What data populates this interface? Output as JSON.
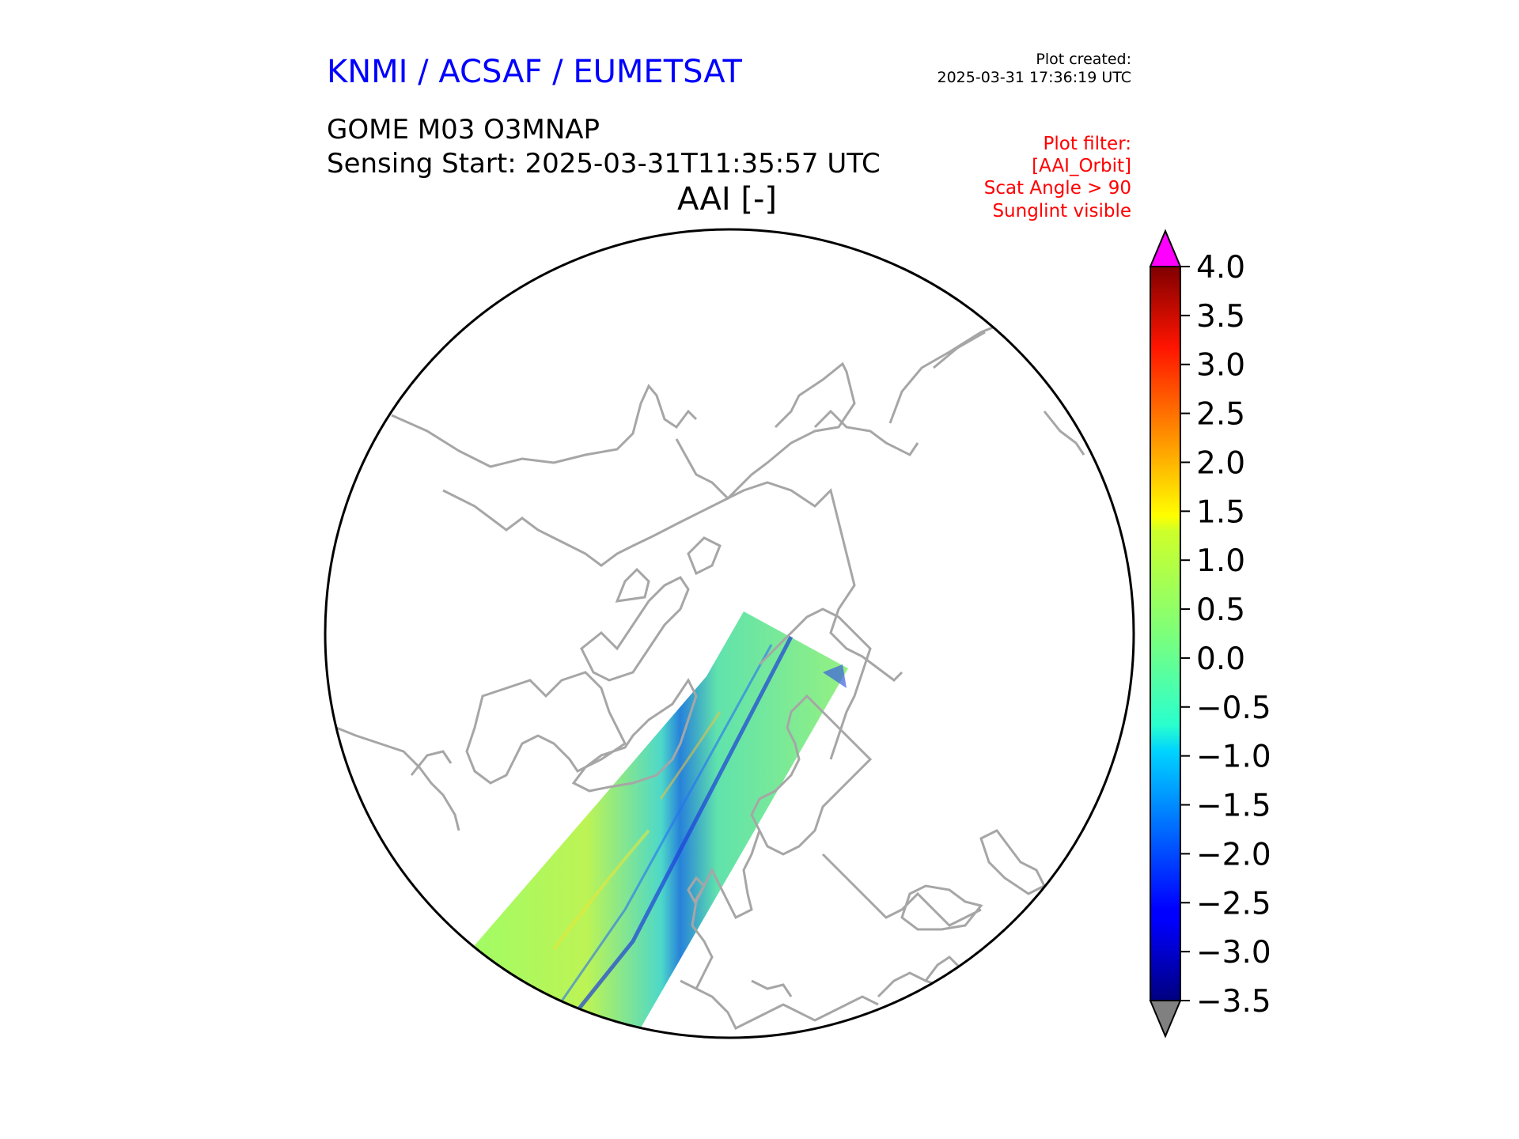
{
  "header": {
    "organization": "KNMI / ACSAF / EUMETSAT",
    "plot_created_label": "Plot created:",
    "plot_created_time": "2025-03-31 17:36:19 UTC",
    "product": "GOME M03 O3MNAP",
    "sensing_start": "Sensing Start: 2025-03-31T11:35:57 UTC",
    "map_title": "AAI [-]"
  },
  "filter": {
    "lines": [
      "Plot filter:",
      "[AAI_Orbit]",
      "Scat Angle > 90",
      "Sunglint visible"
    ]
  },
  "map": {
    "projection": "north-polar-stereographic",
    "coastline_color": "#a6a6a6",
    "boundary_color": "#000000"
  },
  "colorbar": {
    "colormap": "jet",
    "min": -3.5,
    "max": 4.0,
    "over_color": "#ff00ff",
    "under_color": "#808080",
    "tick_labels": [
      "4.0",
      "3.5",
      "3.0",
      "2.5",
      "2.0",
      "1.5",
      "1.0",
      "0.5",
      "0.0",
      "−0.5",
      "−1.0",
      "−1.5",
      "−2.0",
      "−2.5",
      "−3.0",
      "−3.5"
    ]
  }
}
